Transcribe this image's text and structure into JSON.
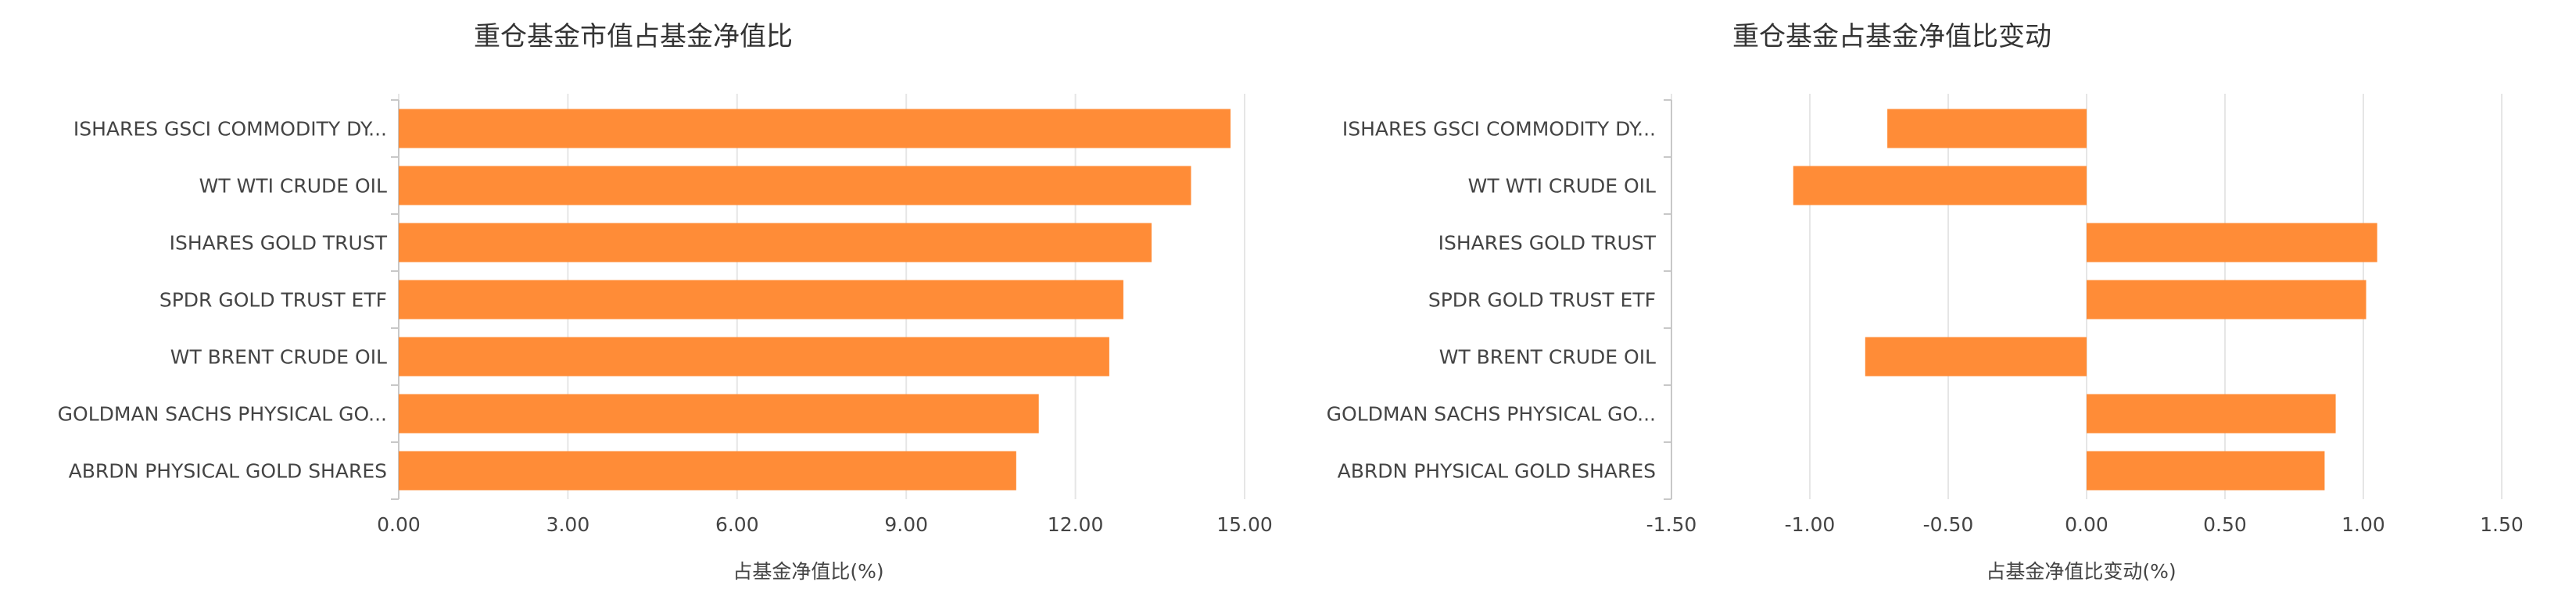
{
  "chart_data": [
    {
      "type": "bar",
      "orientation": "horizontal",
      "title": "重仓基金市值占基金净值比",
      "xlabel": "占基金净值比(%)",
      "ylabel": "",
      "categories": [
        "ISHARES GSCI COMMODITY DY...",
        "WT WTI CRUDE OIL",
        "ISHARES GOLD TRUST",
        "SPDR GOLD TRUST ETF",
        "WT BRENT CRUDE OIL",
        "GOLDMAN SACHS PHYSICAL GO...",
        "ABRDN PHYSICAL GOLD SHARES"
      ],
      "values": [
        14.75,
        14.05,
        13.35,
        12.85,
        12.6,
        11.35,
        10.95
      ],
      "xlim": [
        0,
        15
      ],
      "ticks": [
        "0.00",
        "3.00",
        "6.00",
        "9.00",
        "12.00",
        "15.00"
      ],
      "tick_values": [
        0,
        3,
        6,
        9,
        12,
        15
      ],
      "grid": true,
      "bar_color": "#ff8c37"
    },
    {
      "type": "bar",
      "orientation": "horizontal",
      "title": "重仓基金占基金净值比变动",
      "xlabel": "占基金净值比变动(%)",
      "ylabel": "",
      "categories": [
        "ISHARES GSCI COMMODITY DY...",
        "WT WTI CRUDE OIL",
        "ISHARES GOLD TRUST",
        "SPDR GOLD TRUST ETF",
        "WT BRENT CRUDE OIL",
        "GOLDMAN SACHS PHYSICAL GO...",
        "ABRDN PHYSICAL GOLD SHARES"
      ],
      "values": [
        -0.72,
        -1.06,
        1.05,
        1.01,
        -0.8,
        0.9,
        0.86
      ],
      "xlim": [
        -1.5,
        1.5
      ],
      "ticks": [
        "-1.50",
        "-1.00",
        "-0.50",
        "0.00",
        "0.50",
        "1.00",
        "1.50"
      ],
      "tick_values": [
        -1.5,
        -1.0,
        -0.5,
        0,
        0.5,
        1.0,
        1.5
      ],
      "grid": true,
      "bar_color": "#ff8c37"
    }
  ]
}
